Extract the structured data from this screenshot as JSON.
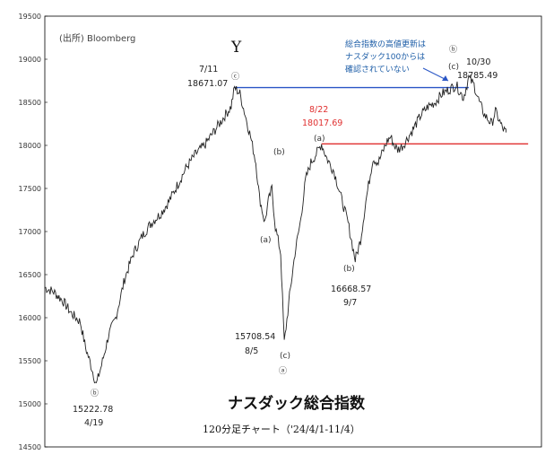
{
  "chart_data": {
    "type": "line",
    "title": "ナスダック総合指数",
    "subtitle": "120分足チャート（'24/4/1-11/4）",
    "source": "(出所) Bloomberg",
    "ylim": [
      14500,
      19500
    ],
    "yticks": [
      14500,
      15000,
      15500,
      16000,
      16500,
      17000,
      17500,
      18000,
      18500,
      19000,
      19500
    ],
    "grid": false,
    "series": [
      {
        "x": [
          0,
          10,
          20,
          30,
          40,
          46,
          52,
          58,
          64,
          72,
          80,
          90,
          100,
          110,
          120,
          130,
          140,
          150,
          160,
          170,
          180,
          190,
          200,
          210,
          214,
          220,
          226,
          232,
          238,
          242,
          248,
          252,
          256,
          260,
          266,
          270,
          276,
          282,
          288,
          294,
          300,
          306,
          312,
          318,
          326,
          334,
          342,
          350,
          356,
          362,
          366,
          370,
          376,
          382,
          386,
          390,
          394,
          398,
          404,
          410,
          416,
          424,
          432,
          440,
          448,
          456,
          464,
          472,
          478,
          484,
          490,
          496,
          500,
          504,
          508,
          512,
          516,
          520
        ],
        "values": [
          16350,
          16300,
          16200,
          16050,
          15950,
          15650,
          15450,
          15222.78,
          15450,
          15800,
          16000,
          16450,
          16750,
          16950,
          17100,
          17200,
          17350,
          17550,
          17750,
          17900,
          18000,
          18150,
          18300,
          18450,
          18671.07,
          18600,
          18350,
          18100,
          17800,
          17400,
          17100,
          17350,
          17500,
          17050,
          16750,
          15708.54,
          16250,
          16750,
          17100,
          17600,
          17800,
          17900,
          18017.69,
          17850,
          17700,
          17400,
          17100,
          16668.57,
          16900,
          17350,
          17600,
          17850,
          17800,
          17950,
          18050,
          18100,
          18000,
          17950,
          18000,
          18100,
          18200,
          18350,
          18450,
          18500,
          18600,
          18650,
          18700,
          18550,
          18785.49,
          18700,
          18500,
          18350,
          18300,
          18250,
          18400,
          18300,
          18200,
          18150
        ]
      }
    ],
    "hlines": [
      {
        "value": 18671.07,
        "color": "#2a56c6",
        "x0": 214,
        "x1": 478
      },
      {
        "value": 18017.69,
        "color": "#e03030",
        "x0": 312,
        "x1": 545
      }
    ],
    "annotations": {
      "low_b": {
        "date": "4/19",
        "value": "15222.78",
        "wave": "ⓑ"
      },
      "high_y": {
        "date": "7/11",
        "value": "18671.07",
        "wave": "ⓒ",
        "label": "Y"
      },
      "low_a": {
        "date": "8/5",
        "value": "15708.54",
        "wave": "ⓐ",
        "sub": "(c)"
      },
      "mid_a": {
        "date": "8/22",
        "value": "18017.69",
        "sub": "(a)"
      },
      "low_9_7": {
        "date": "9/7",
        "value": "16668.57",
        "sub": "(b)"
      },
      "high_10_30": {
        "date": "10/30",
        "value": "18785.49",
        "wave": "ⓑ",
        "sub": "(c)"
      },
      "wave_b_left": "(b)",
      "wave_a_left": "(a)"
    },
    "note": [
      "総合指数の高値更新は",
      "ナスダック100からは",
      "確認されていない"
    ]
  }
}
